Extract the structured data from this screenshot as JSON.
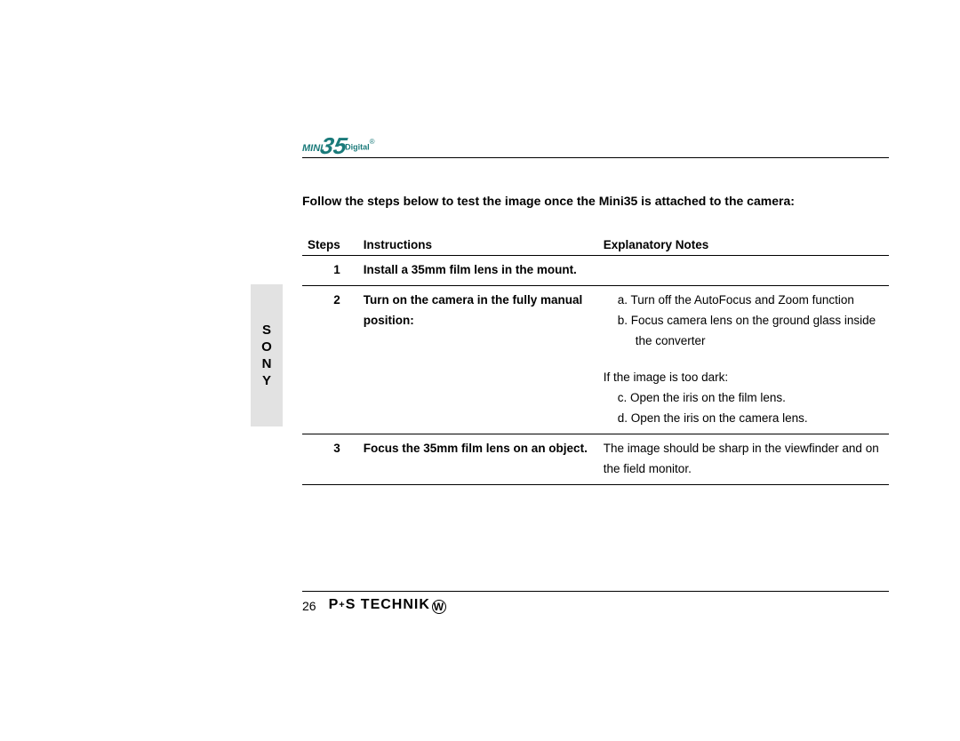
{
  "logo": {
    "mini": "MINI",
    "num": "35",
    "digital": "Digital",
    "reg": "®"
  },
  "intro": "Follow the steps below to test the image once the Mini35 is attached to the camera:",
  "headers": {
    "steps": "Steps",
    "instructions": "Instructions",
    "notes": "Explanatory Notes"
  },
  "rows": [
    {
      "step": "1",
      "instruction": "Install a 35mm film lens in the mount.",
      "notes": []
    },
    {
      "step": "2",
      "instruction": "Turn on the camera in the fully manual position:",
      "notes": [
        "a.  Turn off the AutoFocus and Zoom function",
        "b.  Focus camera lens on the ground glass inside the converter",
        "",
        "If the image is too dark:",
        "c.  Open the iris on the film lens.",
        "d.  Open the iris on the camera lens."
      ]
    },
    {
      "step": "3",
      "instruction": "Focus the 35mm film lens on an object.",
      "notes": [
        "The image should be sharp in the viewfinder and on the field monitor."
      ]
    }
  ],
  "side_tab": [
    "S",
    "O",
    "N",
    "Y"
  ],
  "footer": {
    "page": "26",
    "brand_p": "P",
    "brand_plus": "+",
    "brand_s": "S",
    "brand_rest": " TECHNIK",
    "brand_symbol": "W"
  }
}
